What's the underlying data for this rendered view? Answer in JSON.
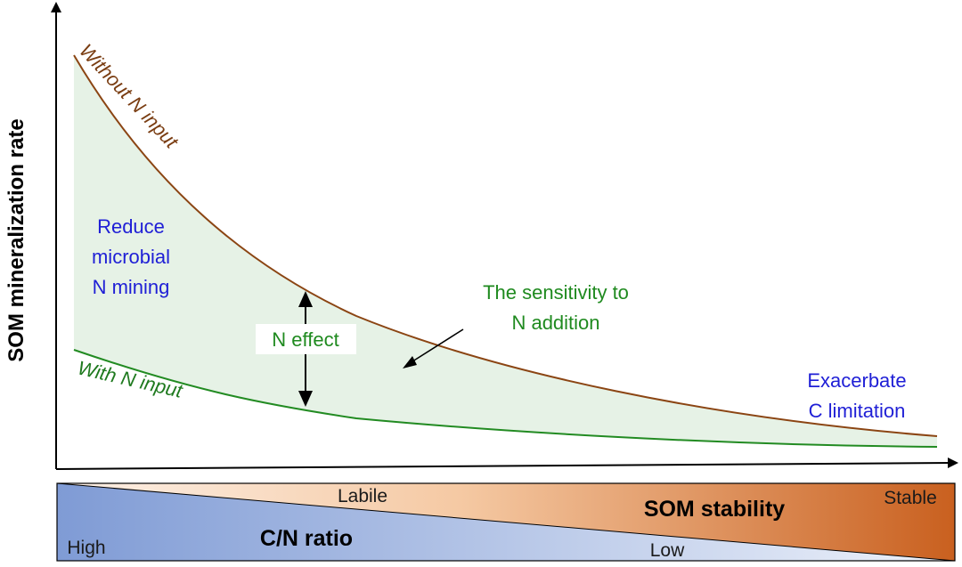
{
  "axes": {
    "y_label": "SOM mineralization rate"
  },
  "curves": {
    "without_n": {
      "label": "Without N input",
      "color": "#8b4513"
    },
    "with_n": {
      "label": "With N input",
      "color": "#228b22"
    },
    "fill_color": "#e6f2e6"
  },
  "annotations": {
    "reduce_mining": [
      "Reduce",
      "microbial",
      "N mining"
    ],
    "sensitivity": [
      "The sensitivity to",
      "N addition"
    ],
    "n_effect": "N effect",
    "exacerbate": [
      "Exacerbate",
      "C limitation"
    ]
  },
  "bar": {
    "top_left_label": "Labile",
    "top_right_label": "Stable",
    "title_stability": "SOM stability",
    "bottom_left_label": "High",
    "bottom_right_label": "Low",
    "title_cn": "C/N ratio",
    "blue_start": "#7f9bd5",
    "blue_end": "#eef2fa",
    "orange_start": "#fdf1e8",
    "orange_end": "#c9601f"
  },
  "colors": {
    "blue_text": "#1f1fd6",
    "green_text": "#1f8a1f",
    "axis": "#000000"
  }
}
